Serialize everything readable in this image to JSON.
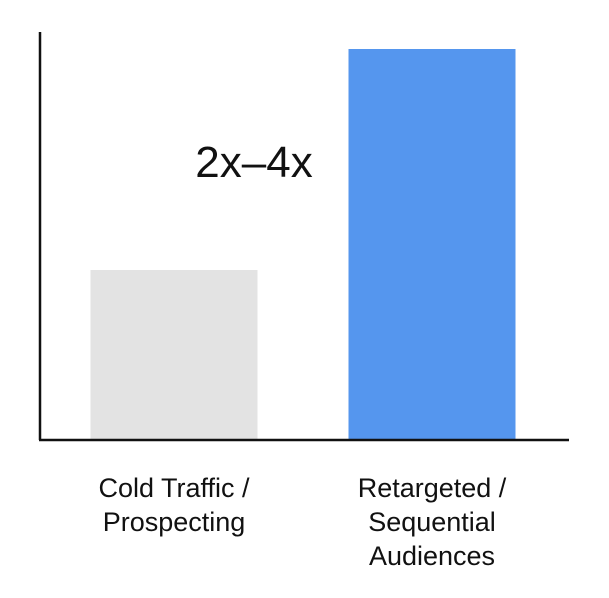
{
  "chart_data": {
    "type": "bar",
    "categories": [
      [
        "Cold Traffic /",
        "Prospecting"
      ],
      [
        "Retargeted /",
        "Sequential",
        "Audiences"
      ]
    ],
    "values": [
      1,
      2.3
    ],
    "ylim": [
      0,
      2.4
    ],
    "title": "",
    "xlabel": "",
    "ylabel": "",
    "grid": false,
    "legend": "none",
    "annotations": [
      {
        "text": "2x–4x"
      }
    ],
    "colors": {
      "bars": [
        "#e3e3e3",
        "#5596ee"
      ],
      "axis": "#111111",
      "text": "#111111",
      "background": "#ffffff"
    }
  }
}
